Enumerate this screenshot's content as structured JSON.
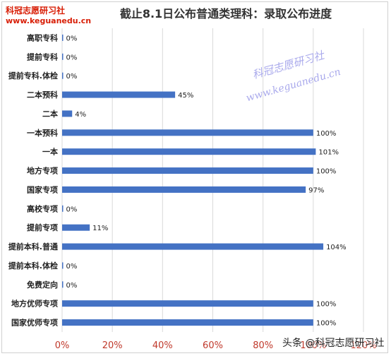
{
  "header": {
    "logo_line1": "科冠志愿研习社",
    "logo_line2": "www.keguanedu.cn"
  },
  "watermark": {
    "line1": "科冠志愿研习社",
    "line2": "www.keguanedu.cn"
  },
  "footer": {
    "text": "头条 @科冠志愿研习社"
  },
  "chart_data": {
    "type": "bar",
    "orientation": "horizontal",
    "title": "截止8.1日公布普通类理科：录取公布进度",
    "categories": [
      "高职专科",
      "提前专科",
      "提前专科.体检",
      "二本预科",
      "二本",
      "一本预科",
      "一本",
      "地方专项",
      "国家专项",
      "高校专项",
      "提前专项",
      "提前本科.普通",
      "提前本科.体检",
      "免费定向",
      "地方优师专项",
      "国家优师专项"
    ],
    "values": [
      0,
      0,
      0,
      45,
      4,
      100,
      101,
      100,
      97,
      0,
      11,
      104,
      0,
      0,
      100,
      100
    ],
    "data_labels": [
      "0%",
      "0%",
      "0%",
      "45%",
      "4%",
      "100%",
      "101%",
      "100%",
      "97%",
      "0%",
      "11%",
      "104%",
      "0%",
      "0%",
      "100%",
      "100%"
    ],
    "x_ticks": [
      "0%",
      "20%",
      "40%",
      "60%",
      "80%",
      "100%",
      "120%"
    ],
    "xlim": [
      0,
      120
    ],
    "xlabel": "",
    "ylabel": "",
    "bar_color": "#4472c4",
    "grid_color": "#d9d9d9",
    "tick_color": "#c0392b",
    "grid": true,
    "legend": "none"
  }
}
